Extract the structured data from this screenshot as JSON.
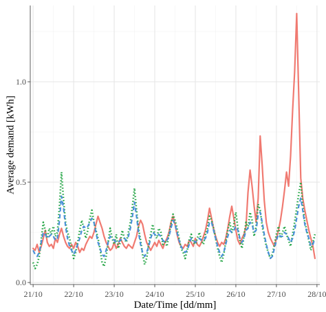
{
  "chart_data": {
    "type": "line",
    "xlabel": "Date/Time [dd/mm]",
    "ylabel": "Average demand [kWh]",
    "x_tick_labels": [
      "21/10",
      "22/10",
      "23/10",
      "24/10",
      "25/10",
      "26/10",
      "27/10",
      "28/10"
    ],
    "x_range": [
      -0.07,
      7.07
    ],
    "y_ticks": [
      0.0,
      0.5,
      1.0
    ],
    "y_tick_labels": [
      "0.0",
      "0.5",
      "1.0"
    ],
    "ylim": [
      -0.01,
      1.38
    ],
    "grid": true,
    "legend": "none",
    "series": [
      {
        "style": "solid",
        "color": "#f07a71",
        "x": [
          0.0,
          0.05,
          0.1,
          0.15,
          0.2,
          0.25,
          0.3,
          0.35,
          0.4,
          0.45,
          0.5,
          0.55,
          0.6,
          0.65,
          0.7,
          0.75,
          0.8,
          0.85,
          0.9,
          0.95,
          1.0,
          1.05,
          1.1,
          1.15,
          1.2,
          1.25,
          1.3,
          1.35,
          1.4,
          1.45,
          1.5,
          1.55,
          1.6,
          1.65,
          1.7,
          1.75,
          1.8,
          1.85,
          1.9,
          1.95,
          2.0,
          2.05,
          2.1,
          2.15,
          2.2,
          2.25,
          2.3,
          2.35,
          2.4,
          2.45,
          2.5,
          2.55,
          2.6,
          2.65,
          2.7,
          2.75,
          2.8,
          2.85,
          2.9,
          2.95,
          3.0,
          3.05,
          3.1,
          3.15,
          3.2,
          3.25,
          3.3,
          3.35,
          3.4,
          3.45,
          3.5,
          3.55,
          3.6,
          3.65,
          3.7,
          3.75,
          3.8,
          3.85,
          3.9,
          3.95,
          4.0,
          4.05,
          4.1,
          4.15,
          4.2,
          4.25,
          4.3,
          4.35,
          4.4,
          4.45,
          4.5,
          4.55,
          4.6,
          4.65,
          4.7,
          4.75,
          4.8,
          4.85,
          4.9,
          4.95,
          5.0,
          5.05,
          5.1,
          5.15,
          5.2,
          5.25,
          5.3,
          5.35,
          5.4,
          5.45,
          5.5,
          5.55,
          5.6,
          5.65,
          5.7,
          5.75,
          5.8,
          5.85,
          5.9,
          5.95,
          6.0,
          6.05,
          6.1,
          6.15,
          6.2,
          6.25,
          6.3,
          6.35,
          6.4,
          6.45,
          6.5,
          6.55,
          6.6,
          6.65,
          6.7,
          6.75,
          6.8,
          6.85,
          6.9,
          6.95
        ],
        "values": [
          0.17,
          0.16,
          0.19,
          0.15,
          0.18,
          0.22,
          0.26,
          0.2,
          0.18,
          0.19,
          0.17,
          0.22,
          0.2,
          0.24,
          0.27,
          0.23,
          0.2,
          0.18,
          0.17,
          0.19,
          0.17,
          0.2,
          0.18,
          0.15,
          0.17,
          0.16,
          0.19,
          0.21,
          0.23,
          0.22,
          0.25,
          0.29,
          0.33,
          0.3,
          0.27,
          0.23,
          0.2,
          0.18,
          0.16,
          0.17,
          0.2,
          0.17,
          0.19,
          0.22,
          0.2,
          0.18,
          0.17,
          0.19,
          0.18,
          0.17,
          0.2,
          0.23,
          0.28,
          0.31,
          0.29,
          0.24,
          0.2,
          0.18,
          0.16,
          0.18,
          0.2,
          0.18,
          0.21,
          0.19,
          0.17,
          0.2,
          0.22,
          0.25,
          0.3,
          0.33,
          0.29,
          0.24,
          0.2,
          0.18,
          0.17,
          0.19,
          0.18,
          0.21,
          0.2,
          0.18,
          0.22,
          0.19,
          0.18,
          0.2,
          0.23,
          0.26,
          0.31,
          0.37,
          0.32,
          0.27,
          0.23,
          0.2,
          0.18,
          0.2,
          0.19,
          0.22,
          0.27,
          0.33,
          0.38,
          0.32,
          0.26,
          0.21,
          0.19,
          0.22,
          0.24,
          0.28,
          0.45,
          0.56,
          0.48,
          0.38,
          0.3,
          0.42,
          0.73,
          0.58,
          0.41,
          0.3,
          0.25,
          0.22,
          0.2,
          0.18,
          0.22,
          0.26,
          0.31,
          0.38,
          0.46,
          0.55,
          0.48,
          0.63,
          0.86,
          1.05,
          1.34,
          0.94,
          0.52,
          0.42,
          0.36,
          0.31,
          0.26,
          0.22,
          0.18,
          0.12
        ]
      },
      {
        "style": "dotted",
        "color": "#1ea340",
        "x": [
          0.0,
          0.05,
          0.1,
          0.15,
          0.2,
          0.25,
          0.3,
          0.35,
          0.4,
          0.45,
          0.5,
          0.55,
          0.6,
          0.65,
          0.7,
          0.75,
          0.8,
          0.85,
          0.9,
          0.95,
          1.0,
          1.05,
          1.1,
          1.15,
          1.2,
          1.25,
          1.3,
          1.35,
          1.4,
          1.45,
          1.5,
          1.55,
          1.6,
          1.65,
          1.7,
          1.75,
          1.8,
          1.85,
          1.9,
          1.95,
          2.0,
          2.05,
          2.1,
          2.15,
          2.2,
          2.25,
          2.3,
          2.35,
          2.4,
          2.45,
          2.5,
          2.55,
          2.6,
          2.65,
          2.7,
          2.75,
          2.8,
          2.85,
          2.9,
          2.95,
          3.0,
          3.05,
          3.1,
          3.15,
          3.2,
          3.25,
          3.3,
          3.35,
          3.4,
          3.45,
          3.5,
          3.55,
          3.6,
          3.65,
          3.7,
          3.75,
          3.8,
          3.85,
          3.9,
          3.95,
          4.0,
          4.05,
          4.1,
          4.15,
          4.2,
          4.25,
          4.3,
          4.35,
          4.4,
          4.45,
          4.5,
          4.55,
          4.6,
          4.65,
          4.7,
          4.75,
          4.8,
          4.85,
          4.9,
          4.95,
          5.0,
          5.05,
          5.1,
          5.15,
          5.2,
          5.25,
          5.3,
          5.35,
          5.4,
          5.45,
          5.5,
          5.55,
          5.6,
          5.65,
          5.7,
          5.75,
          5.8,
          5.85,
          5.9,
          5.95,
          6.0,
          6.05,
          6.1,
          6.15,
          6.2,
          6.25,
          6.3,
          6.35,
          6.4,
          6.45,
          6.5,
          6.55,
          6.6,
          6.65,
          6.7,
          6.75,
          6.8,
          6.85,
          6.9,
          6.95
        ],
        "values": [
          0.1,
          0.07,
          0.09,
          0.13,
          0.21,
          0.3,
          0.26,
          0.22,
          0.27,
          0.24,
          0.28,
          0.23,
          0.25,
          0.38,
          0.55,
          0.41,
          0.3,
          0.25,
          0.22,
          0.17,
          0.12,
          0.15,
          0.2,
          0.26,
          0.31,
          0.27,
          0.22,
          0.26,
          0.32,
          0.36,
          0.3,
          0.26,
          0.22,
          0.17,
          0.1,
          0.08,
          0.13,
          0.2,
          0.27,
          0.22,
          0.19,
          0.24,
          0.17,
          0.2,
          0.26,
          0.22,
          0.2,
          0.25,
          0.3,
          0.38,
          0.47,
          0.36,
          0.27,
          0.21,
          0.14,
          0.09,
          0.12,
          0.19,
          0.24,
          0.29,
          0.24,
          0.22,
          0.27,
          0.25,
          0.19,
          0.21,
          0.18,
          0.24,
          0.29,
          0.34,
          0.31,
          0.27,
          0.22,
          0.17,
          0.15,
          0.12,
          0.16,
          0.21,
          0.24,
          0.2,
          0.19,
          0.22,
          0.25,
          0.21,
          0.19,
          0.24,
          0.27,
          0.33,
          0.31,
          0.27,
          0.22,
          0.17,
          0.13,
          0.1,
          0.14,
          0.2,
          0.26,
          0.3,
          0.25,
          0.29,
          0.35,
          0.27,
          0.21,
          0.17,
          0.23,
          0.3,
          0.27,
          0.35,
          0.31,
          0.23,
          0.28,
          0.39,
          0.36,
          0.28,
          0.23,
          0.18,
          0.15,
          0.12,
          0.14,
          0.19,
          0.24,
          0.28,
          0.22,
          0.25,
          0.28,
          0.24,
          0.21,
          0.18,
          0.24,
          0.3,
          0.37,
          0.44,
          0.5,
          0.38,
          0.3,
          0.26,
          0.21,
          0.16,
          0.2,
          0.24
        ]
      },
      {
        "style": "dashed",
        "color": "#4a90d9",
        "x": [
          0.0,
          0.05,
          0.1,
          0.15,
          0.2,
          0.25,
          0.3,
          0.35,
          0.4,
          0.45,
          0.5,
          0.55,
          0.6,
          0.65,
          0.7,
          0.75,
          0.8,
          0.85,
          0.9,
          0.95,
          1.0,
          1.05,
          1.1,
          1.15,
          1.2,
          1.25,
          1.3,
          1.35,
          1.4,
          1.45,
          1.5,
          1.55,
          1.6,
          1.65,
          1.7,
          1.75,
          1.8,
          1.85,
          1.9,
          1.95,
          2.0,
          2.05,
          2.1,
          2.15,
          2.2,
          2.25,
          2.3,
          2.35,
          2.4,
          2.45,
          2.5,
          2.55,
          2.6,
          2.65,
          2.7,
          2.75,
          2.8,
          2.85,
          2.9,
          2.95,
          3.0,
          3.05,
          3.1,
          3.15,
          3.2,
          3.25,
          3.3,
          3.35,
          3.4,
          3.45,
          3.5,
          3.55,
          3.6,
          3.65,
          3.7,
          3.75,
          3.8,
          3.85,
          3.9,
          3.95,
          4.0,
          4.05,
          4.1,
          4.15,
          4.2,
          4.25,
          4.3,
          4.35,
          4.4,
          4.45,
          4.5,
          4.55,
          4.6,
          4.65,
          4.7,
          4.75,
          4.8,
          4.85,
          4.9,
          4.95,
          5.0,
          5.05,
          5.1,
          5.15,
          5.2,
          5.25,
          5.3,
          5.35,
          5.4,
          5.45,
          5.5,
          5.55,
          5.6,
          5.65,
          5.7,
          5.75,
          5.8,
          5.85,
          5.9,
          5.95,
          6.0,
          6.05,
          6.1,
          6.15,
          6.2,
          6.25,
          6.3,
          6.35,
          6.4,
          6.45,
          6.5,
          6.55,
          6.6,
          6.65,
          6.7,
          6.75,
          6.8,
          6.85,
          6.9,
          6.95
        ],
        "values": [
          0.16,
          0.14,
          0.13,
          0.15,
          0.2,
          0.25,
          0.24,
          0.22,
          0.23,
          0.24,
          0.23,
          0.21,
          0.22,
          0.31,
          0.43,
          0.37,
          0.28,
          0.22,
          0.18,
          0.16,
          0.14,
          0.16,
          0.19,
          0.22,
          0.26,
          0.28,
          0.27,
          0.28,
          0.3,
          0.32,
          0.3,
          0.25,
          0.2,
          0.17,
          0.14,
          0.13,
          0.16,
          0.2,
          0.23,
          0.22,
          0.21,
          0.2,
          0.2,
          0.21,
          0.22,
          0.22,
          0.21,
          0.23,
          0.27,
          0.33,
          0.4,
          0.33,
          0.25,
          0.19,
          0.15,
          0.13,
          0.15,
          0.18,
          0.22,
          0.25,
          0.24,
          0.23,
          0.24,
          0.23,
          0.21,
          0.2,
          0.21,
          0.23,
          0.27,
          0.31,
          0.29,
          0.25,
          0.21,
          0.18,
          0.16,
          0.15,
          0.16,
          0.19,
          0.22,
          0.21,
          0.2,
          0.21,
          0.22,
          0.21,
          0.21,
          0.22,
          0.25,
          0.3,
          0.3,
          0.26,
          0.22,
          0.18,
          0.15,
          0.13,
          0.15,
          0.19,
          0.23,
          0.26,
          0.25,
          0.26,
          0.28,
          0.26,
          0.22,
          0.2,
          0.22,
          0.26,
          0.27,
          0.3,
          0.29,
          0.25,
          0.26,
          0.34,
          0.35,
          0.3,
          0.24,
          0.19,
          0.15,
          0.12,
          0.13,
          0.17,
          0.21,
          0.24,
          0.23,
          0.23,
          0.25,
          0.24,
          0.22,
          0.2,
          0.22,
          0.26,
          0.32,
          0.38,
          0.42,
          0.36,
          0.29,
          0.25,
          0.22,
          0.18,
          0.19,
          0.22
        ]
      }
    ]
  }
}
